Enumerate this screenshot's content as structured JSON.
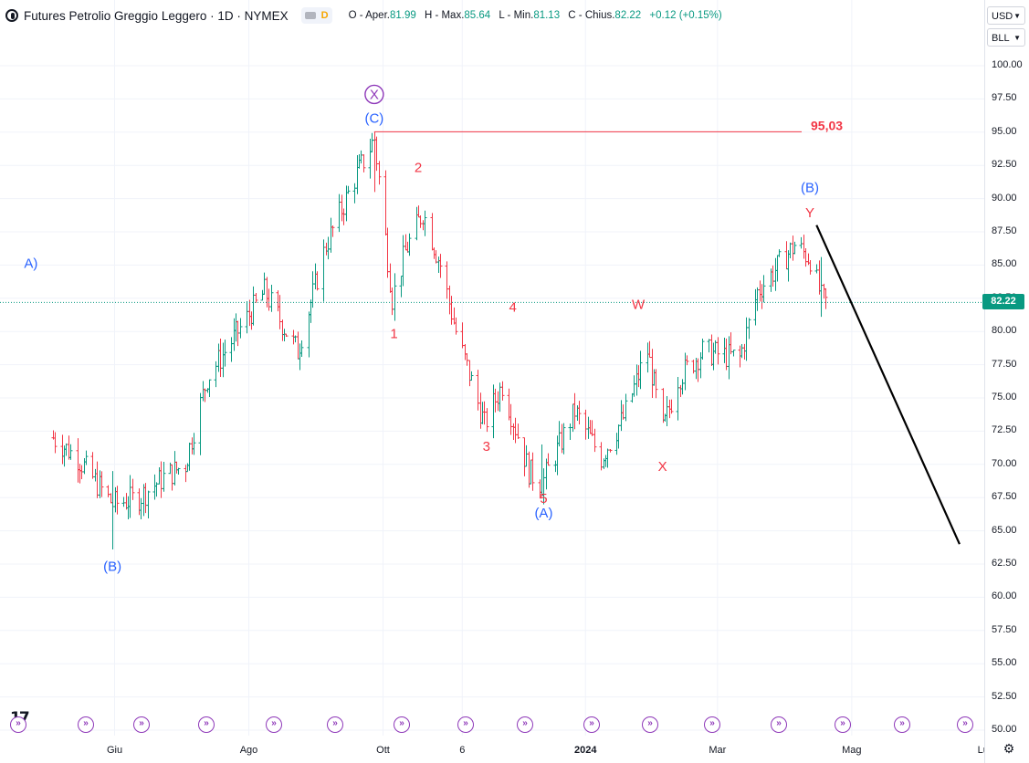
{
  "header": {
    "title": "Futures Petrolio Greggio Leggero · 1D · NYMEX",
    "interval_badge": "D",
    "ohlc": [
      {
        "label": "O - Aper.",
        "value": "81.99"
      },
      {
        "label": "H - Max.",
        "value": "85.64"
      },
      {
        "label": "L - Min.",
        "value": "81.13"
      },
      {
        "label": "C - Chius.",
        "value": "82.22"
      },
      {
        "label": "",
        "value": "+0.12 (+0.15%)"
      }
    ]
  },
  "currency": "USD",
  "unit": "BLL",
  "last_price_tag": "82.22",
  "colors": {
    "up": "#089981",
    "down": "#f23645",
    "wave_blue": "#2962ff",
    "wave_red": "#f23645",
    "level_line": "#f23645"
  },
  "icons": {
    "settings": "gear-icon",
    "logo": "tradingview-logo",
    "event": "dividend-event-icon"
  },
  "chart_data": {
    "type": "ohlc-bar",
    "symbol": "Futures Petrolio Greggio Leggero",
    "y_ticks": [
      "100.00",
      "97.50",
      "95.00",
      "92.50",
      "90.00",
      "87.50",
      "85.00",
      "82.50",
      "80.00",
      "77.50",
      "75.00",
      "72.50",
      "70.00",
      "67.50",
      "65.00",
      "62.50",
      "60.00",
      "57.50",
      "55.00",
      "52.50",
      "50.00"
    ],
    "ylim": [
      50,
      100
    ],
    "x_ticks": [
      "Giu",
      "Ago",
      "Ott",
      "6",
      "2024",
      "Mar",
      "Mag",
      "Lug"
    ],
    "last_price": 82.22,
    "resistance_level": {
      "value": 95.03,
      "label": "95,03"
    },
    "path_anchors": [
      {
        "date": "2023-05-04",
        "v": 72.0
      },
      {
        "date": "2023-05-15",
        "v": 70.5
      },
      {
        "date": "2023-05-31",
        "v": 67.0
      },
      {
        "date": "2023-06-12",
        "v": 67.5
      },
      {
        "date": "2023-06-23",
        "v": 69.0
      },
      {
        "date": "2023-07-03",
        "v": 70.0
      },
      {
        "date": "2023-07-13",
        "v": 76.5
      },
      {
        "date": "2023-07-25",
        "v": 79.5
      },
      {
        "date": "2023-08-08",
        "v": 83.0
      },
      {
        "date": "2023-08-23",
        "v": 78.5
      },
      {
        "date": "2023-09-05",
        "v": 86.5
      },
      {
        "date": "2023-09-18",
        "v": 91.5
      },
      {
        "date": "2023-09-27",
        "v": 94.5
      },
      {
        "date": "2023-10-05",
        "v": 82.5
      },
      {
        "date": "2023-10-11",
        "v": 86.0
      },
      {
        "date": "2023-10-19",
        "v": 89.0
      },
      {
        "date": "2023-10-27",
        "v": 85.0
      },
      {
        "date": "2023-11-03",
        "v": 80.0
      },
      {
        "date": "2023-11-16",
        "v": 73.0
      },
      {
        "date": "2023-11-24",
        "v": 76.0
      },
      {
        "date": "2023-12-06",
        "v": 69.5
      },
      {
        "date": "2023-12-12",
        "v": 68.5
      },
      {
        "date": "2023-12-27",
        "v": 74.0
      },
      {
        "date": "2024-01-08",
        "v": 70.5
      },
      {
        "date": "2024-01-18",
        "v": 73.5
      },
      {
        "date": "2024-01-29",
        "v": 78.5
      },
      {
        "date": "2024-02-05",
        "v": 72.5
      },
      {
        "date": "2024-02-12",
        "v": 76.5
      },
      {
        "date": "2024-02-23",
        "v": 78.5
      },
      {
        "date": "2024-03-11",
        "v": 78.0
      },
      {
        "date": "2024-03-19",
        "v": 83.0
      },
      {
        "date": "2024-04-05",
        "v": 86.5
      },
      {
        "date": "2024-04-12",
        "v": 85.5
      },
      {
        "date": "2024-04-17",
        "v": 82.5
      },
      {
        "date": "2024-04-19",
        "v": 82.22
      }
    ],
    "projection": {
      "from": {
        "date": "2024-04-15",
        "v": 88.0
      },
      "to": {
        "date": "2024-06-19",
        "v": 64.0
      }
    },
    "wave_labels": [
      {
        "text": "A)",
        "date": "2023-04-24",
        "v": 84.8,
        "color": "blue"
      },
      {
        "text": "(B)",
        "date": "2023-05-31",
        "v": 62.0,
        "color": "blue"
      },
      {
        "text": "(C)",
        "date": "2023-09-27",
        "v": 95.7,
        "color": "blue"
      },
      {
        "text": "X",
        "date": "2023-09-27",
        "v": 97.5,
        "color": "blue",
        "circled": true
      },
      {
        "text": "1",
        "date": "2023-10-06",
        "v": 79.5,
        "color": "red"
      },
      {
        "text": "2",
        "date": "2023-10-17",
        "v": 92.0,
        "color": "red"
      },
      {
        "text": "3",
        "date": "2023-11-17",
        "v": 71.0,
        "color": "red"
      },
      {
        "text": "4",
        "date": "2023-11-29",
        "v": 81.5,
        "color": "red"
      },
      {
        "text": "5",
        "date": "2023-12-13",
        "v": 67.1,
        "color": "red"
      },
      {
        "text": "(A)",
        "date": "2023-12-13",
        "v": 66.0,
        "color": "blue"
      },
      {
        "text": "W",
        "date": "2024-01-25",
        "v": 81.7,
        "color": "red"
      },
      {
        "text": "X",
        "date": "2024-02-05",
        "v": 69.5,
        "color": "red"
      },
      {
        "text": "(B)",
        "date": "2024-04-12",
        "v": 90.5,
        "color": "blue"
      },
      {
        "text": "Y",
        "date": "2024-04-12",
        "v": 88.6,
        "color": "red"
      }
    ]
  }
}
